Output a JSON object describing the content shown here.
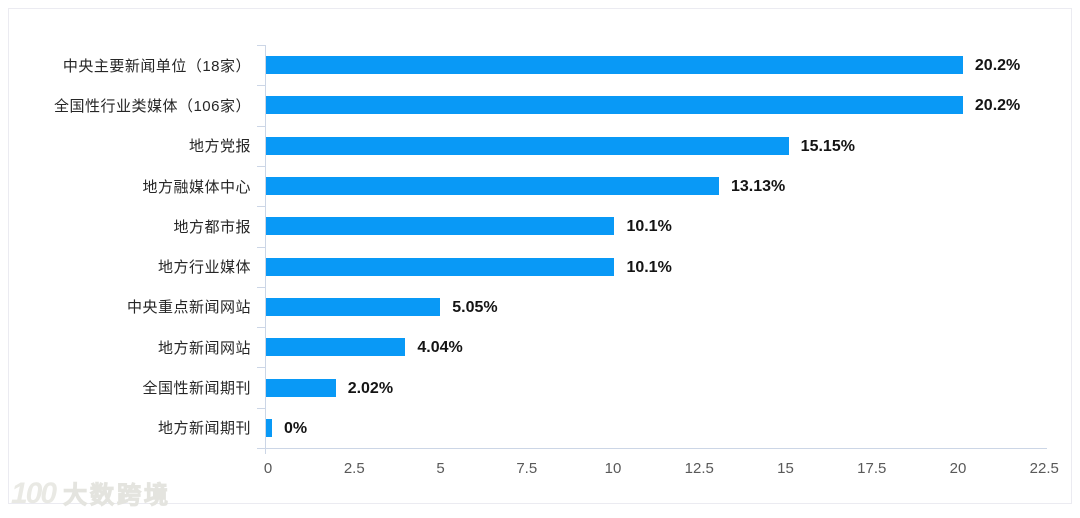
{
  "chart_data": {
    "type": "bar",
    "orientation": "horizontal",
    "title": "",
    "xlabel": "",
    "ylabel": "",
    "categories": [
      "中央主要新闻单位（18家）",
      "全国性行业类媒体（106家）",
      "地方党报",
      "地方融媒体中心",
      "地方都市报",
      "地方行业媒体",
      "中央重点新闻网站",
      "地方新闻网站",
      "全国性新闻期刊",
      "地方新闻期刊"
    ],
    "values": [
      20.2,
      20.2,
      15.15,
      13.13,
      10.1,
      10.1,
      5.05,
      4.04,
      2.02,
      0
    ],
    "value_labels": [
      "20.2%",
      "20.2%",
      "15.15%",
      "13.13%",
      "10.1%",
      "10.1%",
      "5.05%",
      "4.04%",
      "2.02%",
      "0%"
    ],
    "xlim": [
      0,
      22.5
    ],
    "xticks": [
      "0",
      "2.5",
      "5",
      "7.5",
      "10",
      "12.5",
      "15",
      "17.5",
      "20",
      "22.5"
    ],
    "grid": false,
    "legend": false,
    "bar_color": "#0999f6",
    "axis_color": "#ccd6e6",
    "tick_label_color": "#595959",
    "category_label_color": "#262626",
    "value_label_color": "#141414"
  },
  "watermark": {
    "logo": "100",
    "text": "大数跨境"
  }
}
